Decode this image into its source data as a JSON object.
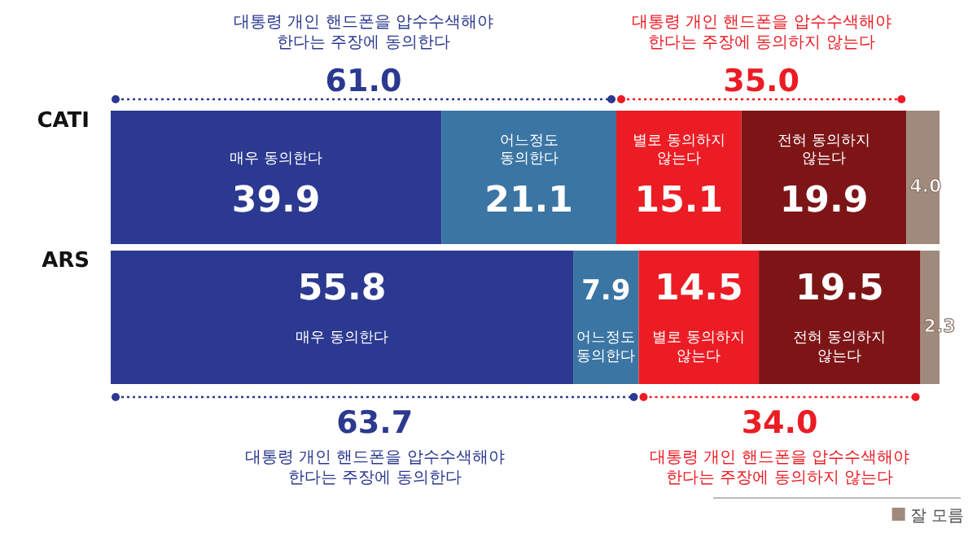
{
  "chart_data": {
    "type": "bar",
    "orientation": "horizontal",
    "stacked": true,
    "categories": [
      "CATI",
      "ARS"
    ],
    "series": [
      {
        "name": "매우 동의한다",
        "color": "#2b3990",
        "values": [
          39.9,
          55.8
        ],
        "value_labels": [
          "39.9",
          "55.8"
        ]
      },
      {
        "name": "어느정도 동의한다",
        "color": "#3b75a4",
        "values": [
          21.1,
          7.9
        ],
        "value_labels": [
          "21.1",
          "7.9"
        ]
      },
      {
        "name": "별로 동의하지 않는다",
        "color": "#ec1c24",
        "values": [
          15.1,
          14.5
        ],
        "value_labels": [
          "15.1",
          "14.5"
        ]
      },
      {
        "name": "전혀 동의하지 않는다",
        "color": "#7d1517",
        "values": [
          19.9,
          19.5
        ],
        "value_labels": [
          "19.9",
          "19.5"
        ]
      },
      {
        "name": "잘 모름",
        "color": "#a08a7c",
        "values": [
          4.0,
          2.3
        ],
        "value_labels": [
          "4.0",
          "2.3"
        ]
      }
    ],
    "legend": "bottom right",
    "annotations": [
      "대통령 개인 핸드폰을 압수수색해야 한다는 주장에 동의한다",
      "61.0",
      "대통령 개인 핸드폰을 압수수색해야 한다는 주장에 동의하지 않는다",
      "35.0",
      "63.7",
      "대통령 개인 핸드폰을 압수수색해야 한다는 주장에 동의한다",
      "34.0",
      "대통령 개인 핸드폰을 압수수색해야 한다는 주장에 동의하지 않는다"
    ]
  }
}
